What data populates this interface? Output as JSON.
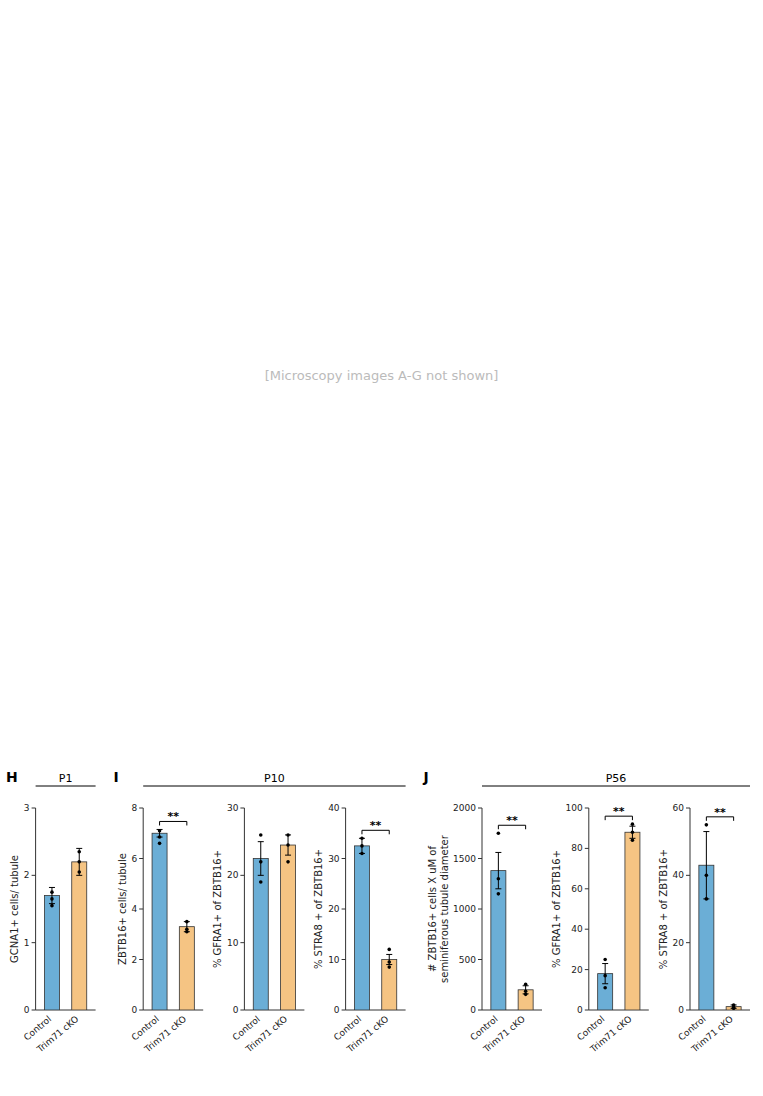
{
  "annotations": [
    "[Microscopy images A-G not shown]"
  ],
  "chart_data": [
    {
      "type": "bar",
      "title": "P1",
      "ylabel": "GCNA1+ cells/ tubule",
      "categories": [
        "Control",
        "Trim71 cKO"
      ],
      "values": [
        1.7,
        2.2
      ],
      "errors": [
        0.12,
        0.2
      ],
      "points": [
        [
          1.55,
          1.65,
          1.75
        ],
        [
          2.05,
          2.2,
          2.35
        ]
      ],
      "colors": [
        "#6baed6",
        "#f5c483"
      ],
      "ylim": [
        0,
        3
      ],
      "yticks": [
        0,
        1,
        2,
        3
      ],
      "grid": false,
      "annotations": [
        {
          "text": "H"
        }
      ]
    },
    {
      "type": "bar",
      "title": "P10",
      "ylabel": "ZBTB16+ cells/ tubule",
      "categories": [
        "Control",
        "Trim71 cKO"
      ],
      "values": [
        7.0,
        3.3
      ],
      "errors": [
        0.15,
        0.2
      ],
      "points": [
        [
          6.6,
          6.85,
          7.1
        ],
        [
          3.1,
          3.2,
          3.5
        ]
      ],
      "colors": [
        "#6baed6",
        "#f5c483"
      ],
      "ylim": [
        0,
        8
      ],
      "yticks": [
        0,
        2,
        4,
        6,
        8
      ],
      "grid": false,
      "annotations": [
        {
          "text": "I"
        },
        {
          "text": "**",
          "categories": [
            "Control",
            "Trim71 cKO"
          ]
        }
      ]
    },
    {
      "type": "bar",
      "ylabel": "% GFRA1+ of ZBTB16+",
      "categories": [
        "Control",
        "Trim71 cKO"
      ],
      "values": [
        22.5,
        24.5
      ],
      "errors": [
        2.5,
        1.5
      ],
      "points": [
        [
          19,
          22,
          26
        ],
        [
          22,
          24.5,
          26
        ]
      ],
      "colors": [
        "#6baed6",
        "#f5c483"
      ],
      "ylim": [
        0,
        30
      ],
      "yticks": [
        0,
        10,
        20,
        30
      ],
      "grid": false
    },
    {
      "type": "bar",
      "ylabel": "% STRA8 + of ZBTB16+",
      "categories": [
        "Control",
        "Trim71 cKO"
      ],
      "values": [
        32.5,
        10.0
      ],
      "errors": [
        1.5,
        1.0
      ],
      "points": [
        [
          31,
          32.5,
          34
        ],
        [
          8.5,
          9.5,
          12
        ]
      ],
      "colors": [
        "#6baed6",
        "#f5c483"
      ],
      "ylim": [
        0,
        40
      ],
      "yticks": [
        0,
        10,
        20,
        30,
        40
      ],
      "grid": false,
      "annotations": [
        {
          "text": "**",
          "categories": [
            "Control",
            "Trim71 cKO"
          ]
        }
      ]
    },
    {
      "type": "bar",
      "title": "P56",
      "ylabel": "# ZBTB16+ cells X uM of\nseminiferous tubule diameter",
      "categories": [
        "Control",
        "Trim71 cKO"
      ],
      "values": [
        1380,
        200
      ],
      "errors": [
        180,
        40
      ],
      "points": [
        [
          1150,
          1300,
          1750
        ],
        [
          155,
          185,
          255
        ]
      ],
      "colors": [
        "#6baed6",
        "#f5c483"
      ],
      "ylim": [
        0,
        2000
      ],
      "yticks": [
        0,
        500,
        1000,
        1500,
        2000
      ],
      "grid": false,
      "annotations": [
        {
          "text": "J"
        },
        {
          "text": "**",
          "categories": [
            "Control",
            "Trim71 cKO"
          ]
        }
      ]
    },
    {
      "type": "bar",
      "ylabel": "% GFRA1+ of ZBTB16+",
      "categories": [
        "Control",
        "Trim71 cKO"
      ],
      "values": [
        18,
        88
      ],
      "errors": [
        5,
        3
      ],
      "points": [
        [
          11,
          17,
          25
        ],
        [
          84,
          88,
          92
        ]
      ],
      "colors": [
        "#6baed6",
        "#f5c483"
      ],
      "ylim": [
        0,
        100
      ],
      "yticks": [
        0,
        20,
        40,
        60,
        80,
        100
      ],
      "grid": false,
      "annotations": [
        {
          "text": "**",
          "categories": [
            "Control",
            "Trim71 cKO"
          ]
        }
      ]
    },
    {
      "type": "bar",
      "ylabel": "% STRA8 + of ZBTB16+",
      "categories": [
        "Control",
        "Trim71 cKO"
      ],
      "values": [
        43,
        1.0
      ],
      "errors": [
        10,
        0.5
      ],
      "points": [
        [
          33,
          40,
          55
        ],
        [
          0.5,
          0.8,
          1.5
        ]
      ],
      "colors": [
        "#6baed6",
        "#f5c483"
      ],
      "ylim": [
        0,
        60
      ],
      "yticks": [
        0,
        20,
        40,
        60
      ],
      "grid": false,
      "annotations": [
        {
          "text": "**",
          "categories": [
            "Control",
            "Trim71 cKO"
          ]
        }
      ]
    }
  ]
}
